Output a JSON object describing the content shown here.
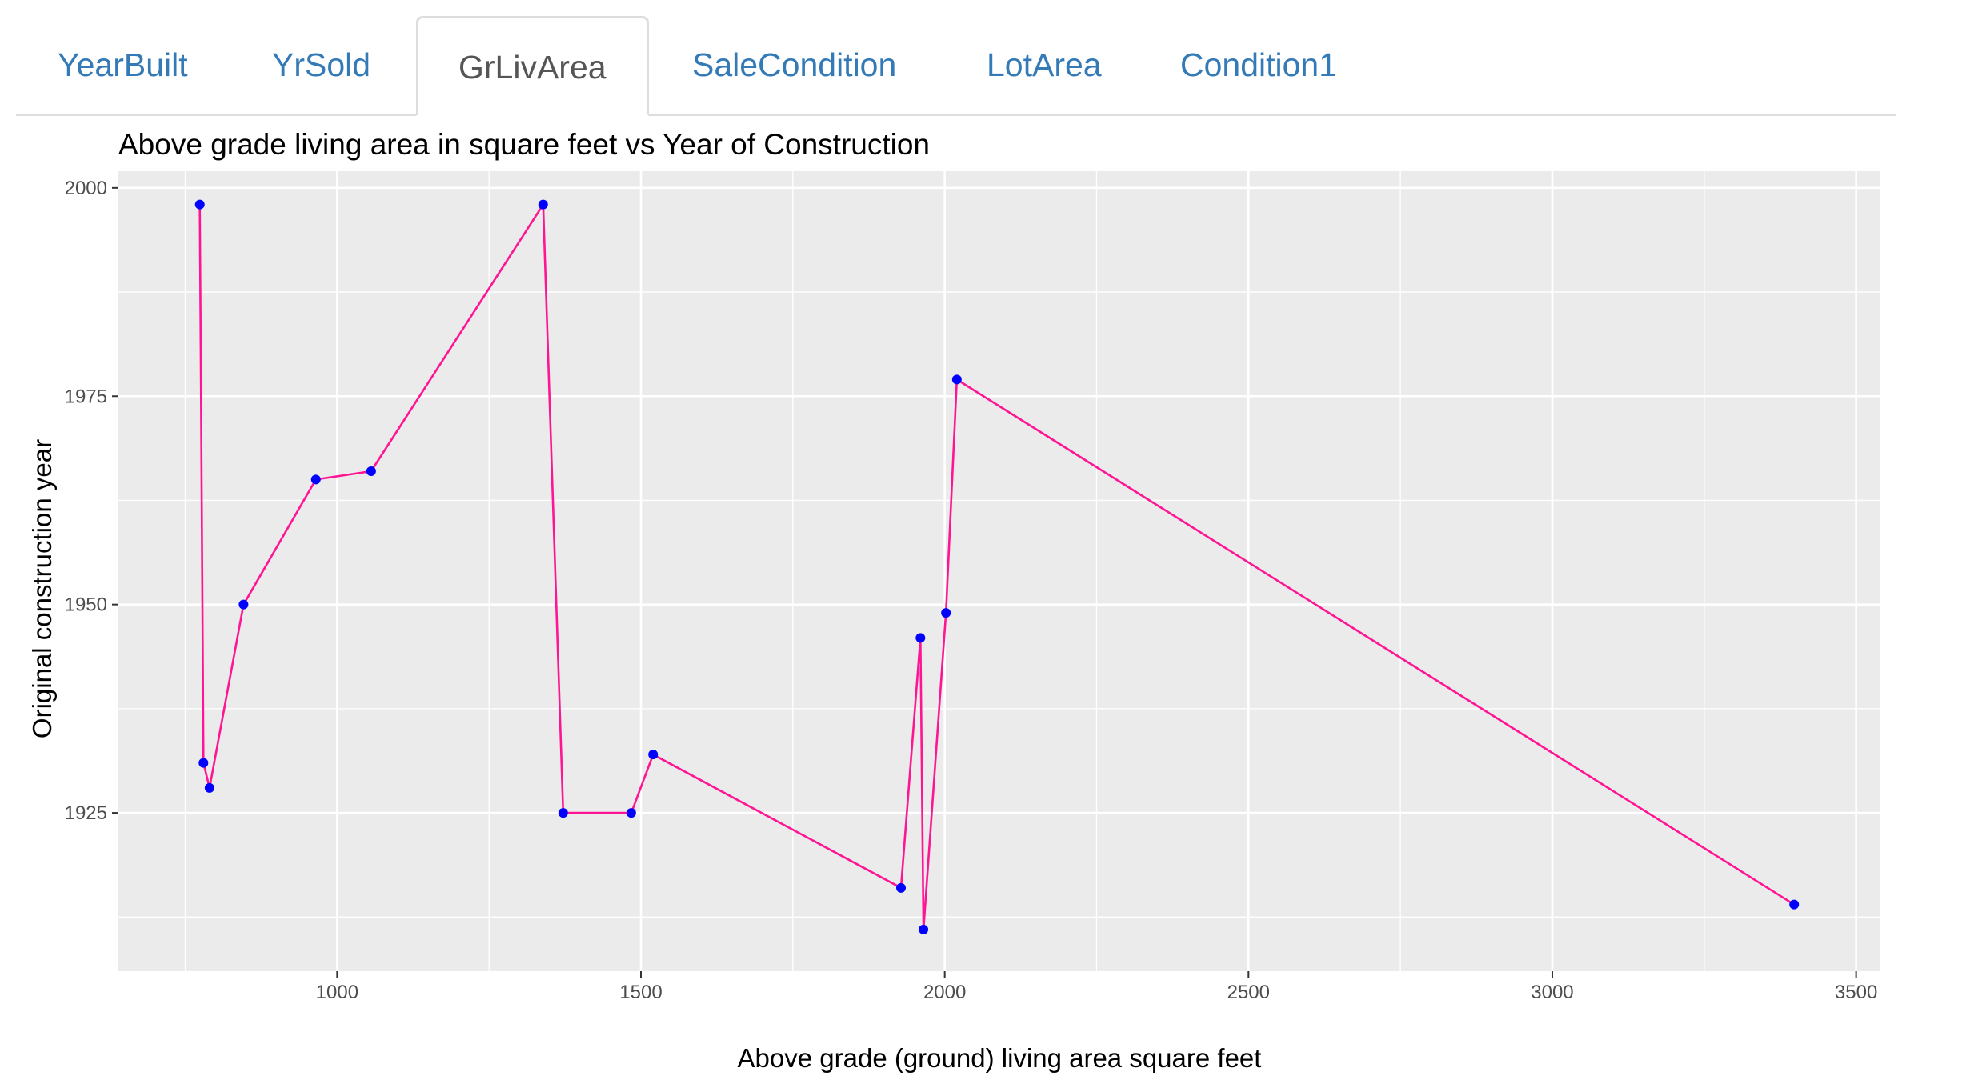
{
  "tabs": [
    {
      "label": "YearBuilt",
      "active": false
    },
    {
      "label": "YrSold",
      "active": false
    },
    {
      "label": "GrLivArea",
      "active": true
    },
    {
      "label": "SaleCondition",
      "active": false
    },
    {
      "label": "LotArea",
      "active": false
    },
    {
      "label": "Condition1",
      "active": false
    }
  ],
  "colors": {
    "panel_bg": "#ebebeb",
    "grid": "#ffffff",
    "line": "#ff1493",
    "point": "#0000ff",
    "tab_link": "#337ab7",
    "tab_active": "#555555"
  },
  "chart_data": {
    "type": "line",
    "title": "Above grade living area in square feet vs Year of Construction",
    "xlabel": "Above grade (ground) living area square feet",
    "ylabel": "Original construction year",
    "xlim": [
      640,
      3540
    ],
    "ylim": [
      1906,
      2002
    ],
    "x_ticks": [
      1000,
      1500,
      2000,
      2500,
      3000,
      3500
    ],
    "y_ticks": [
      1925,
      1950,
      1975,
      2000
    ],
    "grid": true,
    "legend": "none",
    "series": [
      {
        "points": [
          {
            "x": 774,
            "y": 1998
          },
          {
            "x": 780,
            "y": 1931
          },
          {
            "x": 790,
            "y": 1928
          },
          {
            "x": 846,
            "y": 1950
          },
          {
            "x": 965,
            "y": 1965
          },
          {
            "x": 1056,
            "y": 1966
          },
          {
            "x": 1339,
            "y": 1998
          },
          {
            "x": 1372,
            "y": 1925
          },
          {
            "x": 1484,
            "y": 1925
          },
          {
            "x": 1520,
            "y": 1932
          },
          {
            "x": 1928,
            "y": 1916
          },
          {
            "x": 1960,
            "y": 1946
          },
          {
            "x": 1965,
            "y": 1911
          },
          {
            "x": 2002,
            "y": 1949
          },
          {
            "x": 2020,
            "y": 1977
          },
          {
            "x": 3398,
            "y": 1914
          }
        ]
      }
    ]
  }
}
